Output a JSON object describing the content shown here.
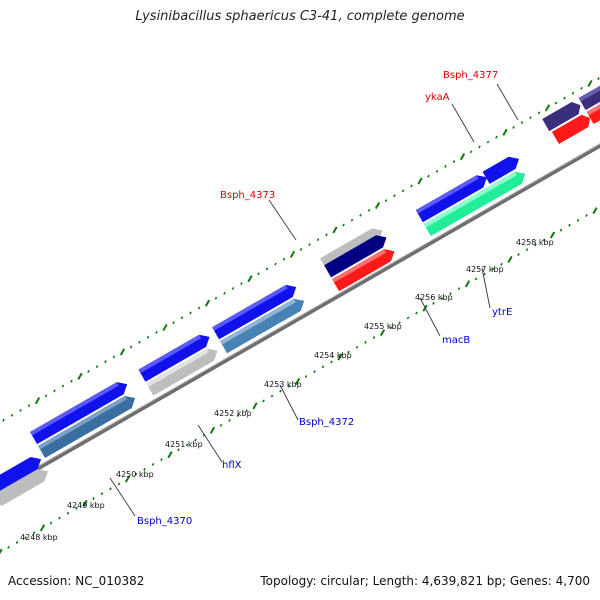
{
  "title": "Lysinibacillus sphaericus C3-41, complete genome",
  "footer": {
    "accession": "Accession: NC_010382",
    "summary": "Topology: circular; Length: 4,639,821 bp; Genes: 4,700"
  },
  "colors": {
    "tick": "#0a7a0a",
    "backbone": "#8a8a8a",
    "label_red": "#dd0000",
    "label_blue": "#0000cc",
    "leader": "#444444"
  },
  "scale_labels": [
    "4248 kbp",
    "4249 kbp",
    "4250 kbp",
    "4251 kbp",
    "4252 kbp",
    "4253 kbp",
    "4254 kbp",
    "4255 kbp",
    "4256 kbp",
    "4257 kbp",
    "4258 kbp"
  ],
  "gene_labels": {
    "bsph_4377": "Bsph_4377",
    "ykaA": "ykaA",
    "bsph_4373": "Bsph_4373",
    "ytrE": "ytrE",
    "macB": "macB",
    "bsph_4372": "Bsph_4372",
    "hflX": "hflX",
    "bsph_4370": "Bsph_4370"
  }
}
